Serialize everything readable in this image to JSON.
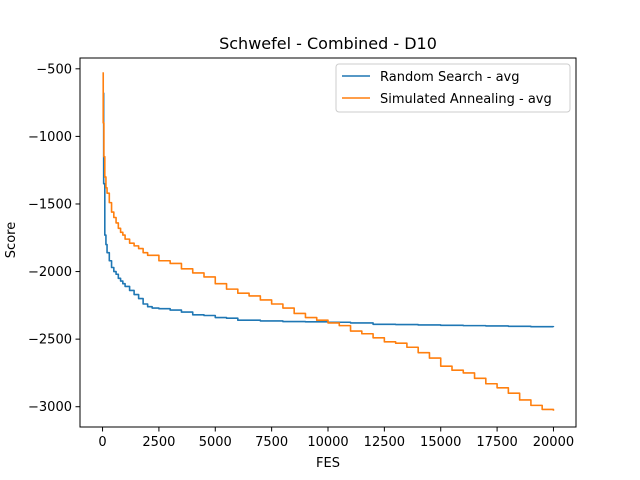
{
  "chart_data": {
    "type": "line",
    "title": "Schwefel - Combined - D10",
    "xlabel": "FES",
    "ylabel": "Score",
    "xlim": [
      -1000,
      21000
    ],
    "ylim": [
      -3150,
      -420
    ],
    "xticks": [
      0,
      2500,
      5000,
      7500,
      10000,
      12500,
      15000,
      17500,
      20000
    ],
    "yticks": [
      -3000,
      -2500,
      -2000,
      -1500,
      -1000,
      -500
    ],
    "grid": false,
    "legend_position": "top-right",
    "series": [
      {
        "name": "Random Search - avg",
        "color": "#1f77b4",
        "x": [
          0,
          50,
          100,
          150,
          200,
          300,
          400,
          500,
          600,
          700,
          800,
          900,
          1000,
          1200,
          1400,
          1600,
          1800,
          2000,
          2200,
          2500,
          3000,
          3500,
          4000,
          4500,
          5000,
          5500,
          6000,
          7000,
          8000,
          9000,
          10000,
          11000,
          12000,
          13000,
          14000,
          15000,
          16000,
          17000,
          18000,
          19000,
          20000
        ],
        "y": [
          -680,
          -1350,
          -1730,
          -1800,
          -1860,
          -1920,
          -1970,
          -2000,
          -2020,
          -2050,
          -2070,
          -2090,
          -2110,
          -2140,
          -2170,
          -2200,
          -2240,
          -2260,
          -2270,
          -2275,
          -2285,
          -2300,
          -2320,
          -2325,
          -2340,
          -2345,
          -2360,
          -2365,
          -2370,
          -2372,
          -2375,
          -2380,
          -2390,
          -2392,
          -2395,
          -2398,
          -2400,
          -2402,
          -2405,
          -2408,
          -2410
        ]
      },
      {
        "name": "Simulated Annealing - avg",
        "color": "#ff7f0e",
        "x": [
          0,
          30,
          60,
          100,
          150,
          200,
          300,
          400,
          500,
          600,
          700,
          800,
          900,
          1000,
          1200,
          1400,
          1600,
          1800,
          2000,
          2500,
          3000,
          3500,
          4000,
          4500,
          5000,
          5500,
          6000,
          6500,
          7000,
          7500,
          8000,
          8500,
          9000,
          9500,
          10000,
          10500,
          11000,
          11500,
          12000,
          12500,
          13000,
          13500,
          14000,
          14500,
          15000,
          15500,
          16000,
          16500,
          17000,
          17500,
          18000,
          18500,
          19000,
          19500,
          20000
        ],
        "y": [
          -530,
          -900,
          -1150,
          -1300,
          -1380,
          -1420,
          -1490,
          -1560,
          -1600,
          -1640,
          -1680,
          -1710,
          -1730,
          -1760,
          -1790,
          -1810,
          -1830,
          -1860,
          -1880,
          -1920,
          -1940,
          -1980,
          -2010,
          -2040,
          -2090,
          -2130,
          -2160,
          -2180,
          -2210,
          -2240,
          -2270,
          -2310,
          -2340,
          -2360,
          -2380,
          -2400,
          -2440,
          -2460,
          -2490,
          -2520,
          -2530,
          -2560,
          -2600,
          -2640,
          -2700,
          -2730,
          -2750,
          -2790,
          -2830,
          -2860,
          -2900,
          -2950,
          -2990,
          -3020,
          -3030
        ]
      }
    ]
  }
}
